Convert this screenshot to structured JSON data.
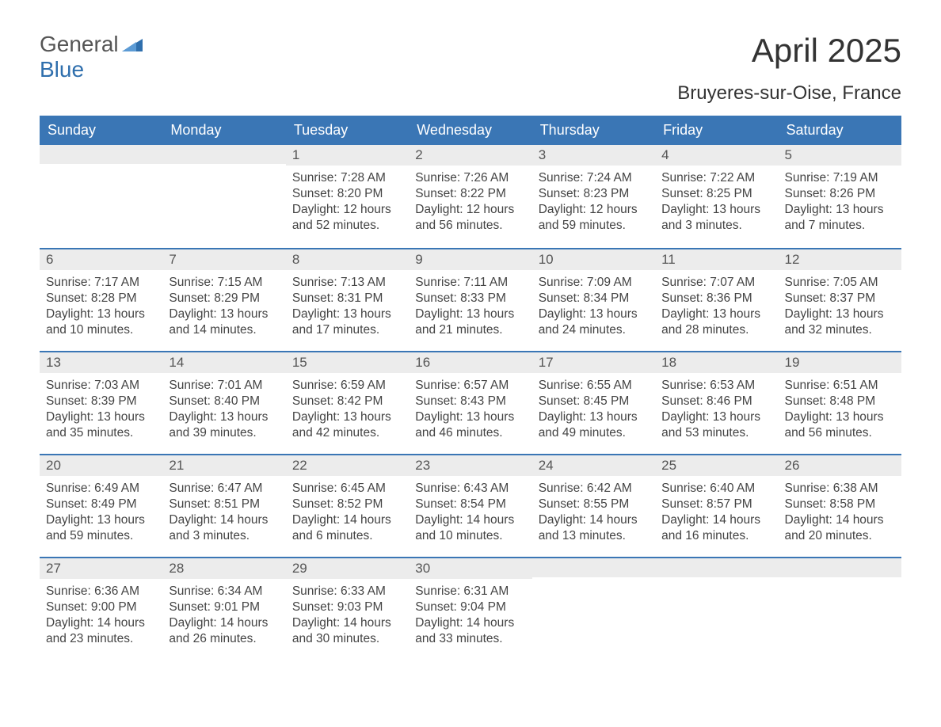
{
  "brand": {
    "word1": "General",
    "word2": "Blue"
  },
  "title": "April 2025",
  "subtitle": "Bruyeres-sur-Oise, France",
  "colors": {
    "header_bg": "#3a76b5",
    "header_text": "#ffffff",
    "daynum_bg": "#ececec",
    "border_top": "#3a76b5",
    "body_text": "#444444",
    "page_bg": "#ffffff",
    "logo_blue": "#2f6fad"
  },
  "columns": [
    "Sunday",
    "Monday",
    "Tuesday",
    "Wednesday",
    "Thursday",
    "Friday",
    "Saturday"
  ],
  "weeks": [
    [
      null,
      null,
      {
        "n": "1",
        "sunrise": "7:28 AM",
        "sunset": "8:20 PM",
        "dl1": "12 hours",
        "dl2": "and 52 minutes."
      },
      {
        "n": "2",
        "sunrise": "7:26 AM",
        "sunset": "8:22 PM",
        "dl1": "12 hours",
        "dl2": "and 56 minutes."
      },
      {
        "n": "3",
        "sunrise": "7:24 AM",
        "sunset": "8:23 PM",
        "dl1": "12 hours",
        "dl2": "and 59 minutes."
      },
      {
        "n": "4",
        "sunrise": "7:22 AM",
        "sunset": "8:25 PM",
        "dl1": "13 hours",
        "dl2": "and 3 minutes."
      },
      {
        "n": "5",
        "sunrise": "7:19 AM",
        "sunset": "8:26 PM",
        "dl1": "13 hours",
        "dl2": "and 7 minutes."
      }
    ],
    [
      {
        "n": "6",
        "sunrise": "7:17 AM",
        "sunset": "8:28 PM",
        "dl1": "13 hours",
        "dl2": "and 10 minutes."
      },
      {
        "n": "7",
        "sunrise": "7:15 AM",
        "sunset": "8:29 PM",
        "dl1": "13 hours",
        "dl2": "and 14 minutes."
      },
      {
        "n": "8",
        "sunrise": "7:13 AM",
        "sunset": "8:31 PM",
        "dl1": "13 hours",
        "dl2": "and 17 minutes."
      },
      {
        "n": "9",
        "sunrise": "7:11 AM",
        "sunset": "8:33 PM",
        "dl1": "13 hours",
        "dl2": "and 21 minutes."
      },
      {
        "n": "10",
        "sunrise": "7:09 AM",
        "sunset": "8:34 PM",
        "dl1": "13 hours",
        "dl2": "and 24 minutes."
      },
      {
        "n": "11",
        "sunrise": "7:07 AM",
        "sunset": "8:36 PM",
        "dl1": "13 hours",
        "dl2": "and 28 minutes."
      },
      {
        "n": "12",
        "sunrise": "7:05 AM",
        "sunset": "8:37 PM",
        "dl1": "13 hours",
        "dl2": "and 32 minutes."
      }
    ],
    [
      {
        "n": "13",
        "sunrise": "7:03 AM",
        "sunset": "8:39 PM",
        "dl1": "13 hours",
        "dl2": "and 35 minutes."
      },
      {
        "n": "14",
        "sunrise": "7:01 AM",
        "sunset": "8:40 PM",
        "dl1": "13 hours",
        "dl2": "and 39 minutes."
      },
      {
        "n": "15",
        "sunrise": "6:59 AM",
        "sunset": "8:42 PM",
        "dl1": "13 hours",
        "dl2": "and 42 minutes."
      },
      {
        "n": "16",
        "sunrise": "6:57 AM",
        "sunset": "8:43 PM",
        "dl1": "13 hours",
        "dl2": "and 46 minutes."
      },
      {
        "n": "17",
        "sunrise": "6:55 AM",
        "sunset": "8:45 PM",
        "dl1": "13 hours",
        "dl2": "and 49 minutes."
      },
      {
        "n": "18",
        "sunrise": "6:53 AM",
        "sunset": "8:46 PM",
        "dl1": "13 hours",
        "dl2": "and 53 minutes."
      },
      {
        "n": "19",
        "sunrise": "6:51 AM",
        "sunset": "8:48 PM",
        "dl1": "13 hours",
        "dl2": "and 56 minutes."
      }
    ],
    [
      {
        "n": "20",
        "sunrise": "6:49 AM",
        "sunset": "8:49 PM",
        "dl1": "13 hours",
        "dl2": "and 59 minutes."
      },
      {
        "n": "21",
        "sunrise": "6:47 AM",
        "sunset": "8:51 PM",
        "dl1": "14 hours",
        "dl2": "and 3 minutes."
      },
      {
        "n": "22",
        "sunrise": "6:45 AM",
        "sunset": "8:52 PM",
        "dl1": "14 hours",
        "dl2": "and 6 minutes."
      },
      {
        "n": "23",
        "sunrise": "6:43 AM",
        "sunset": "8:54 PM",
        "dl1": "14 hours",
        "dl2": "and 10 minutes."
      },
      {
        "n": "24",
        "sunrise": "6:42 AM",
        "sunset": "8:55 PM",
        "dl1": "14 hours",
        "dl2": "and 13 minutes."
      },
      {
        "n": "25",
        "sunrise": "6:40 AM",
        "sunset": "8:57 PM",
        "dl1": "14 hours",
        "dl2": "and 16 minutes."
      },
      {
        "n": "26",
        "sunrise": "6:38 AM",
        "sunset": "8:58 PM",
        "dl1": "14 hours",
        "dl2": "and 20 minutes."
      }
    ],
    [
      {
        "n": "27",
        "sunrise": "6:36 AM",
        "sunset": "9:00 PM",
        "dl1": "14 hours",
        "dl2": "and 23 minutes."
      },
      {
        "n": "28",
        "sunrise": "6:34 AM",
        "sunset": "9:01 PM",
        "dl1": "14 hours",
        "dl2": "and 26 minutes."
      },
      {
        "n": "29",
        "sunrise": "6:33 AM",
        "sunset": "9:03 PM",
        "dl1": "14 hours",
        "dl2": "and 30 minutes."
      },
      {
        "n": "30",
        "sunrise": "6:31 AM",
        "sunset": "9:04 PM",
        "dl1": "14 hours",
        "dl2": "and 33 minutes."
      },
      null,
      null,
      null
    ]
  ],
  "labels": {
    "sunrise": "Sunrise: ",
    "sunset": "Sunset: ",
    "daylight": "Daylight: "
  }
}
